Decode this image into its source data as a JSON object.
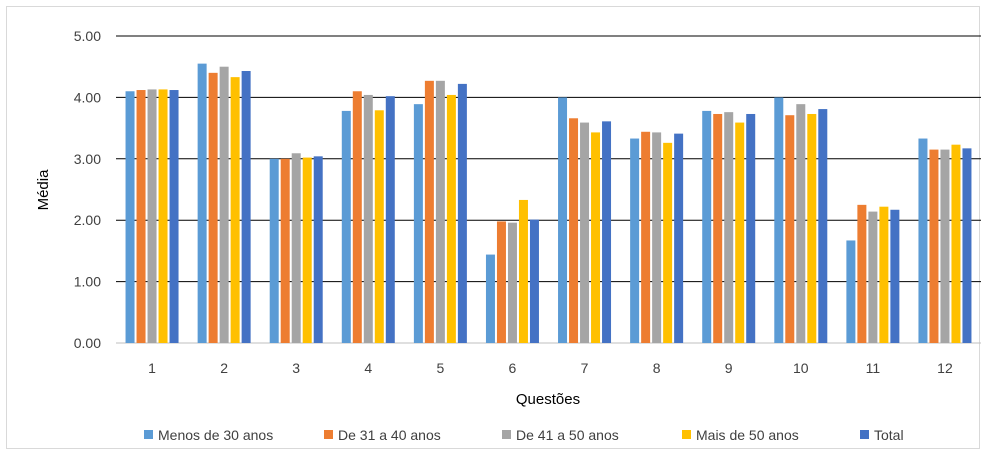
{
  "chart_data": {
    "type": "bar",
    "title": "",
    "xlabel": "Questões",
    "ylabel": "Média",
    "ylim": [
      0,
      5
    ],
    "yticks": [
      "0.00",
      "1.00",
      "2.00",
      "3.00",
      "4.00",
      "5.00"
    ],
    "grid": true,
    "legend_position": "bottom",
    "categories": [
      "1",
      "2",
      "3",
      "4",
      "5",
      "6",
      "7",
      "8",
      "9",
      "10",
      "11",
      "12"
    ],
    "series": [
      {
        "name": "Menos de 30 anos",
        "color": "#5b9bd5",
        "values": [
          4.1,
          4.55,
          3.0,
          3.78,
          3.89,
          1.44,
          4.0,
          3.33,
          3.78,
          4.0,
          1.67,
          3.33
        ]
      },
      {
        "name": "De 31 a 40 anos",
        "color": "#ed7d31",
        "values": [
          4.12,
          4.4,
          3.0,
          4.1,
          4.27,
          1.98,
          3.66,
          3.44,
          3.73,
          3.71,
          2.25,
          3.15
        ]
      },
      {
        "name": "De 41 a 50 anos",
        "color": "#a5a5a5",
        "values": [
          4.13,
          4.5,
          3.09,
          4.04,
          4.27,
          1.96,
          3.59,
          3.43,
          3.76,
          3.89,
          2.14,
          3.15
        ]
      },
      {
        "name": "Mais de 50 anos",
        "color": "#ffc000",
        "values": [
          4.13,
          4.33,
          3.02,
          3.79,
          4.04,
          2.33,
          3.43,
          3.26,
          3.59,
          3.73,
          2.22,
          3.23
        ]
      },
      {
        "name": "Total",
        "color": "#4472c4",
        "values": [
          4.12,
          4.43,
          3.04,
          4.02,
          4.22,
          2.01,
          3.61,
          3.41,
          3.73,
          3.81,
          2.17,
          3.17
        ]
      }
    ]
  }
}
